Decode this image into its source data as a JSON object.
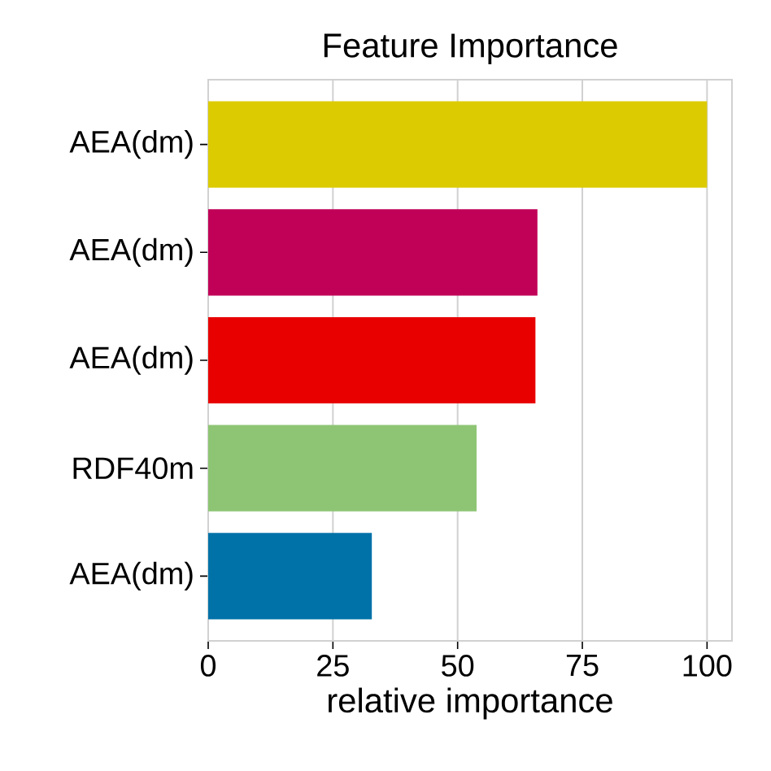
{
  "chart_data": {
    "type": "bar",
    "orientation": "horizontal",
    "title": "Feature Importance",
    "xlabel": "relative importance",
    "categories": [
      "AEA(dm)",
      "AEA(dm)",
      "AEA(dm)",
      "RDF40m",
      "AEA(dm)"
    ],
    "values": [
      100,
      66,
      65.6,
      53.8,
      32.8
    ],
    "colors": [
      "#dccb00",
      "#c10058",
      "#e80000",
      "#8ec574",
      "#0072a8"
    ],
    "xlim": [
      0,
      105
    ],
    "xticks": [
      0,
      25,
      50,
      75,
      100
    ],
    "grid": "x"
  }
}
